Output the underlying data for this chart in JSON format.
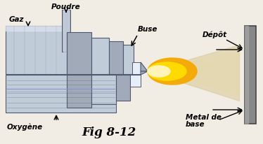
{
  "bg_color": "#f2ede4",
  "title": "Fig 8-12",
  "labels": {
    "gaz": "Gaz",
    "poudre": "Poudre",
    "buse": "Buse",
    "depot": "Dépôt",
    "oxygene": "Oxygène",
    "metal": "Metal de\nbase"
  },
  "gc_light": "#c0ccd8",
  "gc_mid": "#a0aab8",
  "gc_dark": "#505870",
  "gc_hi": "#dde4f0",
  "gc_white": "#e8eef8",
  "plate_color": "#888888",
  "plate_dark": "#444444",
  "spray_color": "#e0d0a8",
  "flame_orange": "#f5a800",
  "flame_yellow": "#ffdd00",
  "flame_white": "#fff8cc",
  "text_color": "#000000"
}
